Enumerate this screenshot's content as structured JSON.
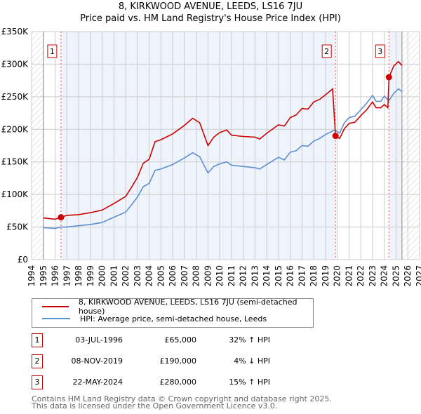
{
  "title": "8, KIRKWOOD AVENUE, LEEDS, LS16 7JU",
  "subtitle": "Price paid vs. HM Land Registry's House Price Index (HPI)",
  "chart_data": {
    "type": "line",
    "xlim": [
      1994,
      2027
    ],
    "ylim": [
      0,
      350000
    ],
    "yticks": [
      0,
      50000,
      100000,
      150000,
      200000,
      250000,
      300000,
      350000
    ],
    "ytick_labels": [
      "£0",
      "£50K",
      "£100K",
      "£150K",
      "£200K",
      "£250K",
      "£300K",
      "£350K"
    ],
    "xticks": [
      1994,
      1995,
      1996,
      1997,
      1998,
      1999,
      2000,
      2001,
      2002,
      2003,
      2004,
      2005,
      2006,
      2007,
      2008,
      2009,
      2010,
      2011,
      2012,
      2013,
      2014,
      2015,
      2016,
      2017,
      2018,
      2019,
      2020,
      2021,
      2022,
      2023,
      2024,
      2025,
      2026,
      2027
    ],
    "grid": true,
    "series": [
      {
        "name": "8, KIRKWOOD AVENUE, LEEDS, LS16 7JU (semi-detached house)",
        "color": "#cc0000",
        "x": [
          1995,
          1996,
          1996.5,
          1997,
          1998,
          1999,
          2000,
          2001,
          2002,
          2002.5,
          2003,
          2003.5,
          2004,
          2004.5,
          2005,
          2006,
          2007,
          2007.7,
          2008.3,
          2009,
          2009.5,
          2010,
          2010.6,
          2011,
          2012,
          2013,
          2013.4,
          2014,
          2015,
          2015.5,
          2016,
          2016.5,
          2017,
          2017.5,
          2018,
          2018.5,
          2019,
          2019.6,
          2019.85,
          2020.2,
          2020.6,
          2021,
          2021.5,
          2022,
          2022.5,
          2023,
          2023.3,
          2023.7,
          2024,
          2024.3,
          2024.4,
          2024.8,
          2025.2,
          2025.5
        ],
        "y": [
          64000,
          62000,
          65000,
          68000,
          69000,
          72000,
          76000,
          86000,
          97000,
          111000,
          126000,
          148000,
          154000,
          181000,
          184000,
          193000,
          206000,
          217000,
          210000,
          175000,
          188000,
          195000,
          199000,
          191000,
          189000,
          188000,
          185000,
          194000,
          207000,
          205000,
          218000,
          222000,
          232000,
          231000,
          242000,
          246000,
          253000,
          262000,
          190000,
          186000,
          201000,
          209000,
          211000,
          221000,
          230000,
          242000,
          233000,
          233000,
          238000,
          233000,
          280000,
          297000,
          304000,
          298000
        ]
      },
      {
        "name": "HPI: Average price, semi-detached house, Leeds",
        "color": "#5b8fd4",
        "x": [
          1995,
          1996,
          1996.5,
          1997,
          1998,
          1999,
          2000,
          2001,
          2002,
          2002.5,
          2003,
          2003.5,
          2004,
          2004.5,
          2005,
          2006,
          2007,
          2007.7,
          2008.3,
          2009,
          2009.5,
          2010,
          2010.6,
          2011,
          2012,
          2013,
          2013.4,
          2014,
          2015,
          2015.5,
          2016,
          2016.5,
          2017,
          2017.5,
          2018,
          2018.5,
          2019,
          2019.8,
          2020.2,
          2020.6,
          2021,
          2021.5,
          2022,
          2022.5,
          2023,
          2023.3,
          2023.7,
          2024,
          2024.2,
          2024.4,
          2024.8,
          2025.2,
          2025.5
        ],
        "y": [
          49000,
          48000,
          50000,
          50000,
          52000,
          54000,
          57000,
          65000,
          73000,
          84000,
          96000,
          112000,
          117000,
          137000,
          139000,
          146000,
          156000,
          164000,
          158000,
          133000,
          143000,
          147000,
          150000,
          145000,
          143000,
          141000,
          139000,
          146000,
          157000,
          153000,
          165000,
          167000,
          175000,
          174000,
          182000,
          186000,
          192000,
          199000,
          194000,
          210000,
          218000,
          220000,
          230000,
          240000,
          252000,
          243000,
          243000,
          251000,
          247000,
          244000,
          255000,
          262000,
          258000
        ]
      }
    ],
    "sales": [
      {
        "label": "1",
        "x": 1996.5,
        "y": 65000
      },
      {
        "label": "2",
        "x": 2019.85,
        "y": 190000
      },
      {
        "label": "3",
        "x": 2024.39,
        "y": 280000
      }
    ],
    "data_end": 2025.5
  },
  "legend": [
    "8, KIRKWOOD AVENUE, LEEDS, LS16 7JU (semi-detached house)",
    "HPI: Average price, semi-detached house, Leeds"
  ],
  "transactions": [
    {
      "num": "1",
      "date": "03-JUL-1996",
      "price": "£65,000",
      "hpi": "32% ↑ HPI"
    },
    {
      "num": "2",
      "date": "08-NOV-2019",
      "price": "£190,000",
      "hpi": "4% ↓ HPI"
    },
    {
      "num": "3",
      "date": "22-MAY-2024",
      "price": "£280,000",
      "hpi": "15% ↑ HPI"
    }
  ],
  "footer": [
    "Contains HM Land Registry data © Crown copyright and database right 2025.",
    "This data is licensed under the Open Government Licence v3.0."
  ]
}
